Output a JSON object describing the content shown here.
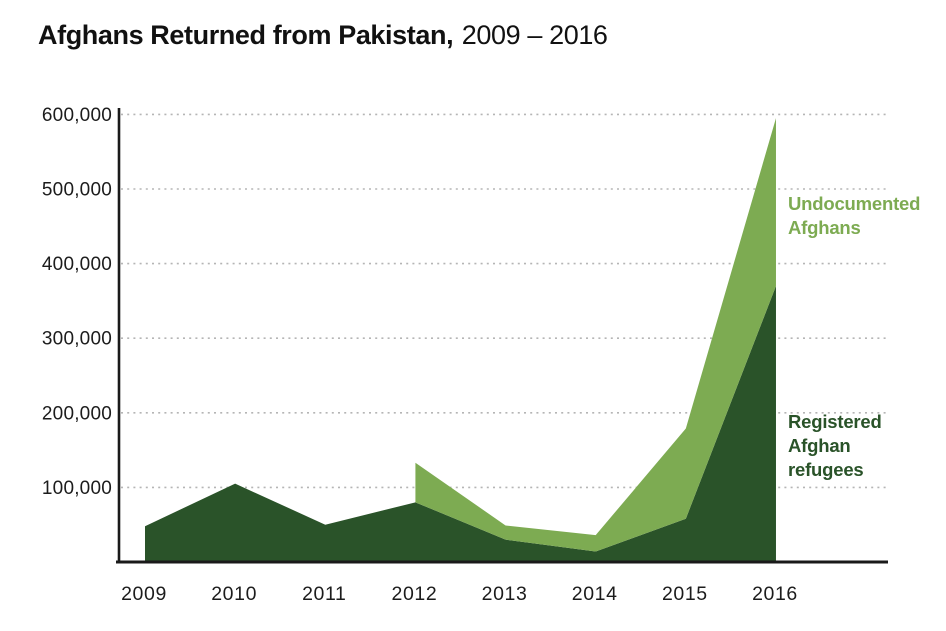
{
  "title": {
    "main": "Afghans Returned from Pakistan,",
    "period": "2009 – 2016"
  },
  "colors": {
    "registered_area": "#2a5329",
    "undocumented_area": "#7dab52",
    "grid_line": "#b5b5b5",
    "axis_line": "#1a1a1a",
    "tick_text": "#1c1c1c",
    "title_text": "#111111"
  },
  "chart_data": {
    "type": "area",
    "stacked": true,
    "title": "Afghans Returned from Pakistan, 2009 – 2016",
    "categories": [
      "2009",
      "2010",
      "2011",
      "2012",
      "2013",
      "2014",
      "2015",
      "2016"
    ],
    "series": [
      {
        "name": "Registered Afghan refugees",
        "annotation": "Registered\nAfghan\nrefugees",
        "color": "#2a5329",
        "values": [
          48000,
          105000,
          50000,
          80000,
          30000,
          14000,
          58000,
          370000
        ]
      },
      {
        "name": "Undocumented Afghans",
        "annotation": "Undocumented\nAfghans",
        "color": "#7dab52",
        "values": [
          null,
          null,
          null,
          53000,
          19000,
          22000,
          121000,
          225000
        ],
        "note": "series begins in 2012 with a vertical edge"
      }
    ],
    "stacked_totals": [
      48000,
      105000,
      50000,
      133000,
      49000,
      36000,
      179000,
      595000
    ],
    "ylim": [
      0,
      600000
    ],
    "yticks": [
      {
        "value": 100000,
        "label": "100,000"
      },
      {
        "value": 200000,
        "label": "200,000"
      },
      {
        "value": 300000,
        "label": "300,000"
      },
      {
        "value": 400000,
        "label": "400,000"
      },
      {
        "value": 500000,
        "label": "500,000"
      },
      {
        "value": 600000,
        "label": "600,000"
      }
    ],
    "xlabel": "",
    "ylabel": "",
    "grid": "horizontal-dotted",
    "legend_position": "right-annotations"
  }
}
